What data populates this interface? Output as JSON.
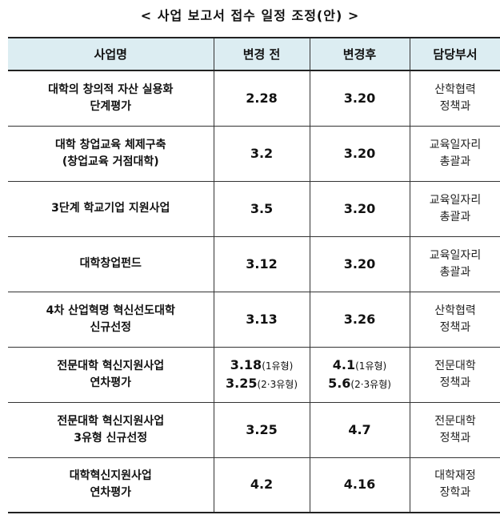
{
  "title": "< 사업 보고서 접수 일정 조정(안) >",
  "headers": [
    "사업명",
    "변경 전",
    "변경후",
    "담당부서"
  ],
  "rows": [
    {
      "name": [
        "대학의 창의적 자산 실용화",
        "단계평가"
      ],
      "before": [
        {
          "v": "2.28",
          "s": ""
        }
      ],
      "after": [
        {
          "v": "3.20",
          "s": ""
        }
      ],
      "dept": [
        "산학협력",
        "정책과"
      ]
    },
    {
      "name": [
        "대학 창업교육 체제구축",
        "(창업교육 거점대학)"
      ],
      "before": [
        {
          "v": "3.2",
          "s": ""
        }
      ],
      "after": [
        {
          "v": "3.20",
          "s": ""
        }
      ],
      "dept": [
        "교육일자리",
        "총괄과"
      ]
    },
    {
      "name": [
        "3단계 학교기업 지원사업"
      ],
      "before": [
        {
          "v": "3.5",
          "s": ""
        }
      ],
      "after": [
        {
          "v": "3.20",
          "s": ""
        }
      ],
      "dept": [
        "교육일자리",
        "총괄과"
      ]
    },
    {
      "name": [
        "대학창업펀드"
      ],
      "before": [
        {
          "v": "3.12",
          "s": ""
        }
      ],
      "after": [
        {
          "v": "3.20",
          "s": ""
        }
      ],
      "dept": [
        "교육일자리",
        "총괄과"
      ]
    },
    {
      "name": [
        "4차 산업혁명 혁신선도대학",
        "신규선정"
      ],
      "before": [
        {
          "v": "3.13",
          "s": ""
        }
      ],
      "after": [
        {
          "v": "3.26",
          "s": ""
        }
      ],
      "dept": [
        "산학협력",
        "정책과"
      ]
    },
    {
      "name": [
        "전문대학 혁신지원사업",
        "연차평가"
      ],
      "before": [
        {
          "v": "3.18",
          "s": "(1유형)"
        },
        {
          "v": "3.25",
          "s": "(2·3유형)"
        }
      ],
      "after": [
        {
          "v": "4.1",
          "s": "(1유형)"
        },
        {
          "v": "5.6",
          "s": "(2·3유형)"
        }
      ],
      "dept": [
        "전문대학",
        "정책과"
      ]
    },
    {
      "name": [
        "전문대학 혁신지원사업",
        "3유형 신규선정"
      ],
      "before": [
        {
          "v": "3.25",
          "s": ""
        }
      ],
      "after": [
        {
          "v": "4.7",
          "s": ""
        }
      ],
      "dept": [
        "전문대학",
        "정책과"
      ]
    },
    {
      "name": [
        "대학혁신지원사업",
        "연차평가"
      ],
      "before": [
        {
          "v": "4.2",
          "s": ""
        }
      ],
      "after": [
        {
          "v": "4.16",
          "s": ""
        }
      ],
      "dept": [
        "대학재정",
        "장학과"
      ]
    }
  ]
}
